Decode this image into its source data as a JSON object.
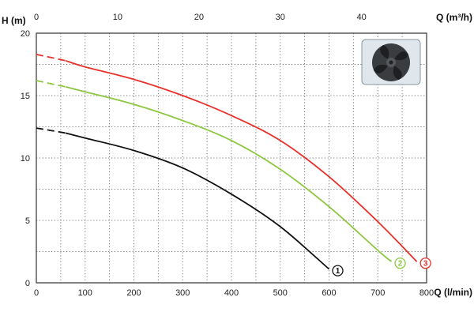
{
  "chart_data": {
    "type": "line",
    "title": "",
    "xlabel": "Q (l/min)",
    "x2label": "Q (m³/h)",
    "ylabel": "H (m)",
    "xlim": [
      0,
      800
    ],
    "x2lim": [
      0,
      48
    ],
    "ylim": [
      0,
      20
    ],
    "x_ticks": [
      0,
      100,
      200,
      300,
      400,
      500,
      600,
      700,
      800
    ],
    "x2_ticks": [
      0,
      10,
      20,
      30,
      40
    ],
    "y_ticks": [
      0,
      5,
      10,
      15,
      20
    ],
    "grid": true,
    "grid_style": "dotted",
    "series": [
      {
        "marker": "1",
        "color": "#111111",
        "dashed_until": 60,
        "x": [
          0,
          60,
          100,
          200,
          300,
          400,
          500,
          600
        ],
        "y": [
          12.4,
          12.0,
          11.6,
          10.6,
          9.2,
          7.1,
          4.5,
          1.1
        ]
      },
      {
        "marker": "2",
        "color": "#8dc63f",
        "dashed_until": 60,
        "x": [
          0,
          60,
          100,
          200,
          300,
          400,
          500,
          600,
          700,
          728
        ],
        "y": [
          16.2,
          15.7,
          15.3,
          14.3,
          13.0,
          11.4,
          9.1,
          6.1,
          2.6,
          1.7
        ]
      },
      {
        "marker": "3",
        "color": "#e8302a",
        "dashed_until": 60,
        "x": [
          0,
          60,
          100,
          200,
          300,
          400,
          500,
          600,
          700,
          780
        ],
        "y": [
          18.3,
          17.8,
          17.3,
          16.3,
          15.0,
          13.4,
          11.4,
          8.5,
          4.9,
          1.7
        ]
      }
    ]
  },
  "icons": {
    "impeller": "impeller-image"
  }
}
